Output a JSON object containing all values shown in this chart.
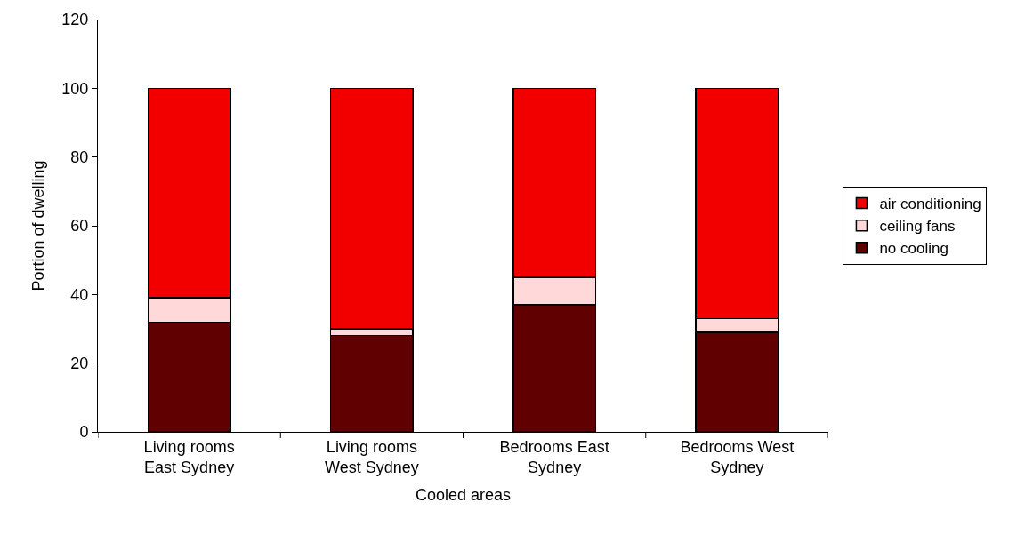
{
  "chart_data": {
    "type": "bar",
    "stacked": true,
    "xlabel": "Cooled areas",
    "ylabel": "Portion of dwelling",
    "categories": [
      "Living rooms East Sydney",
      "Living rooms West Sydney",
      "Bedrooms East Sydney",
      "Bedrooms West Sydney"
    ],
    "series": [
      {
        "name": "no cooling",
        "color": "#600000",
        "values": [
          32,
          28,
          37,
          29
        ]
      },
      {
        "name": "ceiling fans",
        "color": "#ffd9d9",
        "values": [
          7,
          2,
          8,
          4
        ]
      },
      {
        "name": "air conditioning",
        "color": "#f20000",
        "values": [
          61,
          70,
          55,
          67
        ]
      }
    ],
    "ylim": [
      0,
      120
    ],
    "yticks": [
      0,
      20,
      40,
      60,
      80,
      100,
      120
    ],
    "grid": false,
    "legend": "right"
  }
}
